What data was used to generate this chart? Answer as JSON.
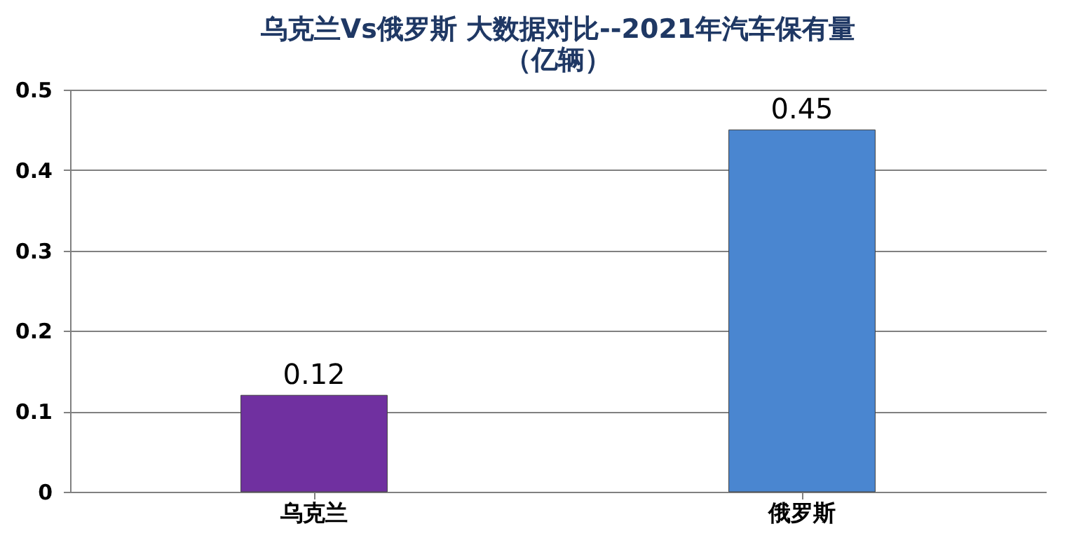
{
  "chart_data": {
    "type": "bar",
    "title": "乌克兰Vs俄罗斯 大数据对比--2021年汽车保有量",
    "subtitle": "（亿辆）",
    "categories": [
      "乌克兰",
      "俄罗斯"
    ],
    "values": [
      0.12,
      0.45
    ],
    "colors": [
      "#7030a0",
      "#4a86d0"
    ],
    "ylim": [
      0,
      0.5
    ],
    "yticks": [
      0,
      0.1,
      0.2,
      0.3,
      0.4,
      0.5
    ],
    "grid": "y",
    "data_labels": true
  }
}
